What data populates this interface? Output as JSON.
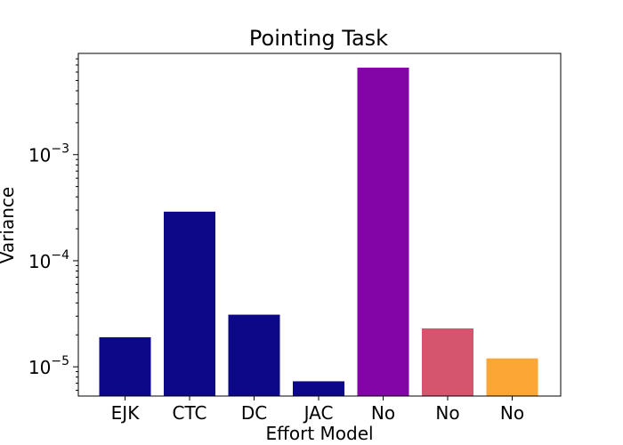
{
  "chart_data": {
    "type": "bar",
    "title": "Pointing Task",
    "xlabel": "Effort Model",
    "ylabel": "Variance",
    "yscale": "log",
    "ylim": [
      5.3e-06,
      0.009
    ],
    "yticks": [
      {
        "value": 1e-05,
        "base": "10",
        "exp": "−5"
      },
      {
        "value": 0.0001,
        "base": "10",
        "exp": "−4"
      },
      {
        "value": 0.001,
        "base": "10",
        "exp": "−3"
      }
    ],
    "categories": [
      "EJK",
      "CTC",
      "DC",
      "JAC",
      "No",
      "No",
      "No"
    ],
    "values": [
      1.9e-05,
      0.00029,
      3.1e-05,
      7.3e-06,
      0.0066,
      2.3e-05,
      1.2e-05
    ],
    "colors": [
      "#0d0887",
      "#0d0887",
      "#0d0887",
      "#0d0887",
      "#8305a7",
      "#d5546e",
      "#fca636"
    ],
    "grid": false,
    "legend": "none"
  }
}
